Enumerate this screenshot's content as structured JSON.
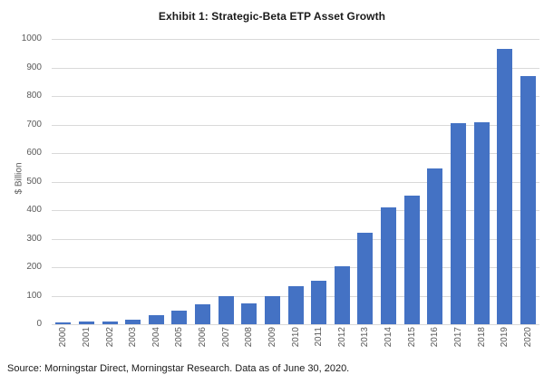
{
  "title": "Exhibit 1: Strategic-Beta ETP Asset Growth",
  "source_note": "Source: Morningstar Direct, Morningstar Research. Data as of June 30, 2020.",
  "chart_data": {
    "type": "bar",
    "title": "Exhibit 1: Strategic-Beta ETP Asset Growth",
    "xlabel": "",
    "ylabel": "$ Billion",
    "categories": [
      "2000",
      "2001",
      "2002",
      "2003",
      "2004",
      "2005",
      "2006",
      "2007",
      "2008",
      "2009",
      "2010",
      "2011",
      "2012",
      "2013",
      "2014",
      "2015",
      "2016",
      "2017",
      "2018",
      "2019",
      "2020"
    ],
    "values": [
      5,
      8,
      11,
      16,
      31,
      48,
      71,
      100,
      74,
      98,
      134,
      152,
      202,
      322,
      408,
      451,
      547,
      706,
      709,
      965,
      871
    ],
    "ylim": [
      0,
      1000
    ],
    "yticks": [
      0,
      100,
      200,
      300,
      400,
      500,
      600,
      700,
      800,
      900,
      1000
    ],
    "grid": true,
    "legend": false,
    "colors": {
      "bar": "#4472C4",
      "gridline": "#d9d9d9",
      "tick_label": "#595959",
      "title": "#1a1a1a"
    }
  }
}
